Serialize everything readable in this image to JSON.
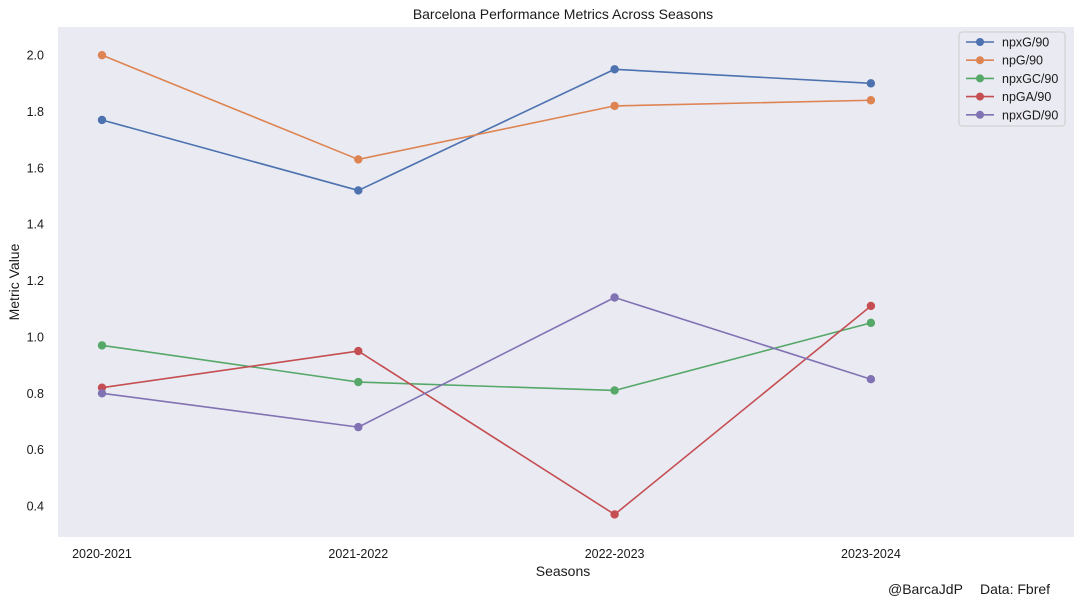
{
  "chart_data": {
    "type": "line",
    "title": "Barcelona Performance Metrics Across Seasons",
    "xlabel": "Seasons",
    "ylabel": "Metric Value",
    "categories": [
      "2020-2021",
      "2021-2022",
      "2022-2023",
      "2023-2024"
    ],
    "ylim": [
      0.29,
      2.1
    ],
    "yticks": [
      0.4,
      0.6,
      0.8,
      1.0,
      1.2,
      1.4,
      1.6,
      1.8,
      2.0
    ],
    "ytick_labels": [
      "0.4",
      "0.6",
      "0.8",
      "1.0",
      "1.2",
      "1.4",
      "1.6",
      "1.8",
      "2.0"
    ],
    "grid": false,
    "legend_position": "top-right",
    "background_color": "#eaeaf2",
    "series": [
      {
        "name": "npxG/90",
        "color": "#4c72b0",
        "values": [
          1.77,
          1.52,
          1.95,
          1.9
        ]
      },
      {
        "name": "npG/90",
        "color": "#dd8452",
        "values": [
          2.0,
          1.63,
          1.82,
          1.84
        ]
      },
      {
        "name": "npxGC/90",
        "color": "#55a868",
        "values": [
          0.97,
          0.84,
          0.81,
          1.05
        ]
      },
      {
        "name": "npGA/90",
        "color": "#c44e52",
        "values": [
          0.82,
          0.95,
          0.37,
          1.11
        ]
      },
      {
        "name": "npxGD/90",
        "color": "#8172b3",
        "values": [
          0.8,
          0.68,
          1.14,
          0.85
        ]
      }
    ]
  },
  "credits": {
    "author": "@BarcaJdP",
    "source": "Data: Fbref"
  }
}
